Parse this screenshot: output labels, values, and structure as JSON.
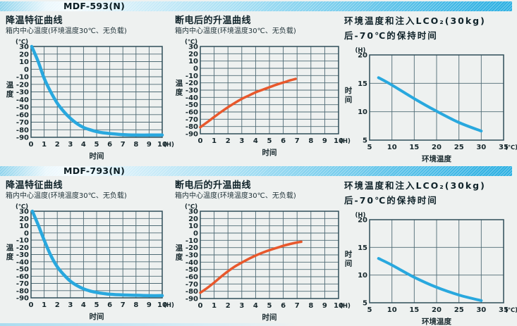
{
  "page": {
    "accent_color": "#2cb0e2",
    "background_color": "#eef1f0",
    "cool_curve_color": "#29a8de",
    "warm_curve_color": "#e8582c"
  },
  "sections": [
    {
      "model": "MDF-593(N)"
    },
    {
      "model": "MDF-793(N)"
    }
  ],
  "chart_data": [
    {
      "type": "line",
      "title": "降温特征曲线",
      "subtitle": "箱内中心温度(环境温度30℃、无负载)",
      "ylabel": "温度",
      "xlabel": "时间",
      "y_unit": "(℃)",
      "x_unit": "(H)",
      "xlim": [
        0,
        10
      ],
      "x_ticks": [
        0,
        1,
        2,
        3,
        4,
        5,
        6,
        7,
        8,
        9,
        10
      ],
      "ylim": [
        -90,
        30
      ],
      "y_ticks": [
        30,
        20,
        10,
        0,
        -10,
        -20,
        -30,
        -40,
        -50,
        -60,
        -70,
        -80,
        -90
      ],
      "grid": true,
      "legend": "none",
      "line_color": "#29a8de",
      "series": [
        {
          "name": "箱内中心温度",
          "x": [
            0.05,
            0.5,
            1,
            1.5,
            2,
            2.5,
            3,
            3.5,
            4,
            4.5,
            5,
            5.5,
            6,
            7,
            8,
            9,
            10
          ],
          "y": [
            30,
            12,
            -12,
            -30,
            -45,
            -56,
            -65,
            -72,
            -77,
            -80,
            -82.5,
            -84,
            -85,
            -86.5,
            -87,
            -87,
            -87
          ]
        }
      ]
    },
    {
      "type": "line",
      "title": "断电后的升温曲线",
      "subtitle": "箱内中心温度(环境温度30℃、无负载)",
      "ylabel": "温度",
      "xlabel": "时间",
      "y_unit": "(℃)",
      "x_unit": "(H)",
      "xlim": [
        0,
        10
      ],
      "x_ticks": [
        0,
        1,
        2,
        3,
        4,
        5,
        6,
        7,
        8,
        9,
        10
      ],
      "ylim": [
        -90,
        30
      ],
      "y_ticks": [
        30,
        20,
        10,
        0,
        -10,
        -20,
        -30,
        -40,
        -50,
        -60,
        -70,
        -80,
        -90
      ],
      "grid": true,
      "legend": "none",
      "line_color": "#e8582c",
      "series": [
        {
          "name": "箱内中心温度",
          "x": [
            0,
            0.5,
            1,
            1.5,
            2,
            2.5,
            3,
            3.5,
            4,
            4.5,
            5,
            5.5,
            6,
            6.5,
            6.9
          ],
          "y": [
            -81,
            -74,
            -67,
            -60,
            -53.5,
            -47.5,
            -42,
            -37.5,
            -33,
            -29.5,
            -26,
            -22.5,
            -19.5,
            -16.5,
            -14.5
          ]
        }
      ]
    },
    {
      "type": "line",
      "title": "环境温度和注入LCO₂(30kg)",
      "title2": "后-70℃的保持时间",
      "ylabel": "时间",
      "xlabel": "环境温度",
      "y_unit": "(H)",
      "x_unit": "(℃)",
      "xlim": [
        5,
        35
      ],
      "x_ticks": [
        5,
        10,
        15,
        20,
        25,
        30,
        35
      ],
      "ylim": [
        5,
        20
      ],
      "y_ticks": [
        20,
        15,
        10,
        5
      ],
      "grid": true,
      "legend": "none",
      "line_color": "#29a8de",
      "series": [
        {
          "name": "保持时间",
          "x": [
            7,
            10,
            15,
            20,
            25,
            30
          ],
          "y": [
            16,
            14.7,
            12.3,
            10.1,
            8.1,
            6.6
          ]
        }
      ]
    },
    {
      "type": "line",
      "title": "降温特征曲线",
      "subtitle": "箱内中心温度(环境温度30℃、无负载)",
      "ylabel": "温度",
      "xlabel": "时间",
      "y_unit": "(℃)",
      "x_unit": "(H)",
      "xlim": [
        0,
        10
      ],
      "x_ticks": [
        0,
        1,
        2,
        3,
        4,
        5,
        6,
        7,
        8,
        9,
        10
      ],
      "ylim": [
        -90,
        30
      ],
      "y_ticks": [
        30,
        20,
        10,
        0,
        -10,
        -20,
        -30,
        -40,
        -50,
        -60,
        -70,
        -80,
        -90
      ],
      "grid": true,
      "legend": "none",
      "line_color": "#29a8de",
      "series": [
        {
          "name": "箱内中心温度",
          "x": [
            0.1,
            0.5,
            1,
            1.5,
            2,
            2.5,
            3,
            3.5,
            4,
            4.5,
            5,
            5.5,
            6,
            7,
            8,
            9,
            10
          ],
          "y": [
            30,
            13,
            -10,
            -31,
            -47,
            -58,
            -67,
            -73,
            -77.5,
            -80.5,
            -82.5,
            -84,
            -85,
            -86,
            -86.5,
            -87,
            -87
          ]
        }
      ]
    },
    {
      "type": "line",
      "title": "断电后的升温曲线",
      "subtitle": "箱内中心温度(环境温度30℃、无负载)",
      "ylabel": "温度",
      "xlabel": "时间",
      "y_unit": "(℃)",
      "x_unit": "(H)",
      "xlim": [
        0,
        10
      ],
      "x_ticks": [
        0,
        1,
        2,
        3,
        4,
        5,
        6,
        7,
        8,
        9,
        10
      ],
      "ylim": [
        -90,
        30
      ],
      "y_ticks": [
        30,
        20,
        10,
        0,
        -10,
        -20,
        -30,
        -40,
        -50,
        -60,
        -70,
        -80,
        -90
      ],
      "grid": true,
      "legend": "none",
      "line_color": "#e8582c",
      "series": [
        {
          "name": "箱内中心温度",
          "x": [
            0,
            0.5,
            1,
            1.5,
            2,
            2.5,
            3,
            3.5,
            4,
            4.5,
            5,
            5.5,
            6,
            6.5,
            7,
            7.3
          ],
          "y": [
            -82,
            -75.5,
            -68,
            -60,
            -52.5,
            -46,
            -40.5,
            -35.5,
            -31,
            -27,
            -23.5,
            -20.5,
            -17.5,
            -15,
            -13,
            -12
          ]
        }
      ]
    },
    {
      "type": "line",
      "title": "环境温度和注入LCO₂(30kg)",
      "title2": "后-70℃的保持时间",
      "ylabel": "时间",
      "xlabel": "环境温度",
      "y_unit": "(H)",
      "x_unit": "(℃)",
      "xlim": [
        5,
        35
      ],
      "x_ticks": [
        5,
        10,
        15,
        20,
        25,
        30,
        35
      ],
      "ylim": [
        5,
        20
      ],
      "y_ticks": [
        20,
        15,
        10,
        5
      ],
      "grid": true,
      "legend": "none",
      "line_color": "#29a8de",
      "series": [
        {
          "name": "保持时间",
          "x": [
            7,
            10,
            15,
            20,
            25,
            30
          ],
          "y": [
            13,
            11.8,
            9.6,
            7.8,
            6.4,
            5.4
          ]
        }
      ]
    }
  ]
}
